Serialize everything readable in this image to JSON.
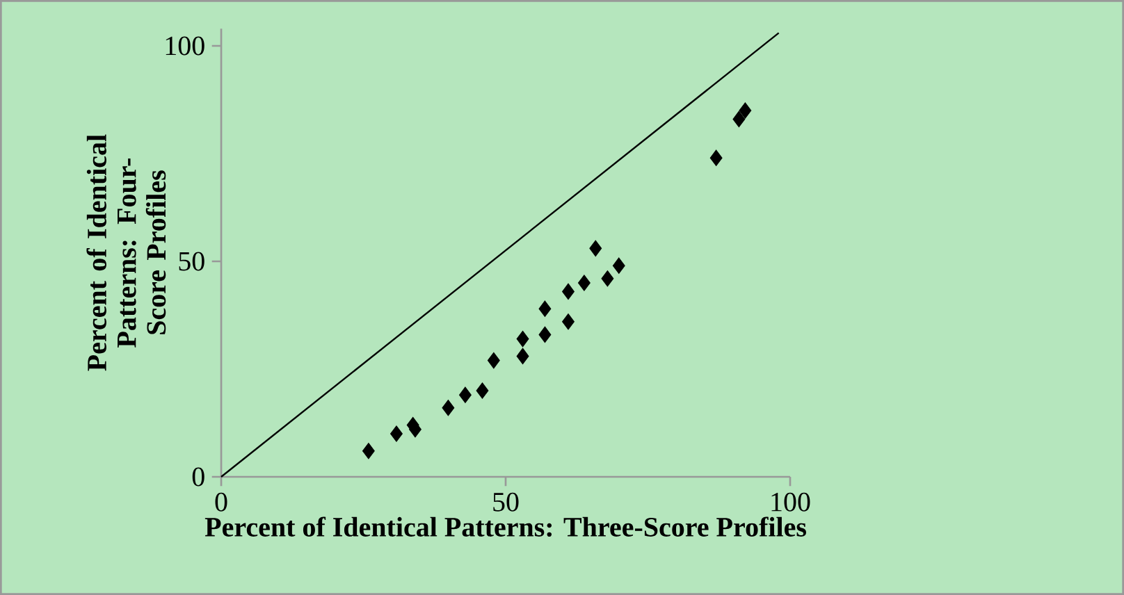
{
  "chart_data": {
    "type": "scatter",
    "xlabel": "Percent of Identical Patterns: Three-Score Profiles",
    "ylabel": "Percent of Identical Patterns: Four- Score Profiles",
    "xlim": [
      0,
      100
    ],
    "ylim": [
      0,
      104
    ],
    "xticks": [
      0,
      50,
      100
    ],
    "yticks": [
      0,
      50,
      100
    ],
    "marker": "diamond",
    "series": [
      {
        "color": "#000000",
        "x": [
          25.9,
          30.8,
          33.7,
          34.1,
          39.9,
          42.9,
          45.9,
          47.9,
          53.0,
          53.0,
          56.9,
          56.9,
          61.0,
          61.0,
          63.8,
          67.9,
          69.9,
          65.8,
          87.0,
          91.0,
          92.1
        ],
        "values": [
          6,
          10,
          12,
          11,
          16,
          19,
          20,
          27,
          28,
          32,
          33,
          39,
          36,
          43,
          45,
          46,
          49,
          53,
          74,
          83,
          85
        ]
      },
      {
        "type": "line",
        "color": "#000000",
        "marker": "none",
        "line_style": "solid",
        "x": [
          0,
          98
        ],
        "values": [
          0,
          103
        ]
      }
    ]
  }
}
